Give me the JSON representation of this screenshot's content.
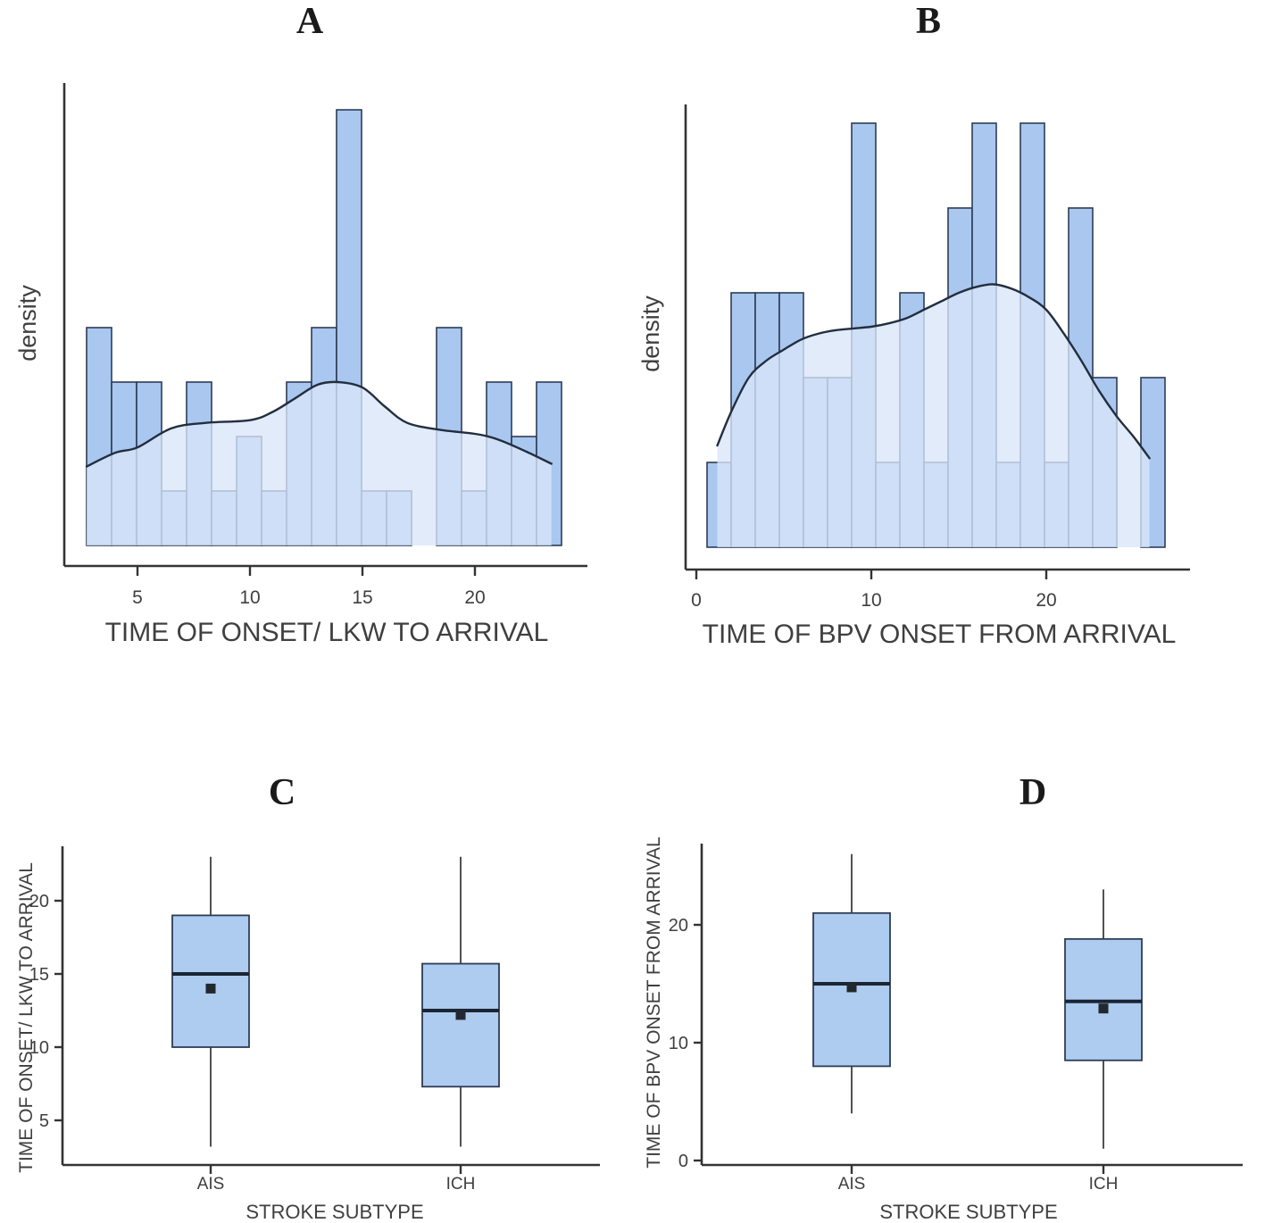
{
  "figure": {
    "background": "#ffffff",
    "colors": {
      "histogram_fill": "#a9c7ef",
      "histogram_stroke": "#2e3c55",
      "density_area_fill": "rgba(216,229,248,0.78)",
      "density_line": "#222e3e",
      "box_fill": "#aecbf0",
      "box_stroke": "#2e3c55",
      "median_line": "#1b2533",
      "mean_marker": "#23272e",
      "whisker": "#333333",
      "axis": "#333333",
      "label_text": "#3f3f3f",
      "title_text": "#1a1a1a"
    }
  },
  "chart_data": [
    {
      "panel": "A",
      "type": "histogram",
      "title": "A",
      "xlabel": "TIME OF ONSET/ LKW TO ARRIVAL",
      "ylabel": "density",
      "x_ticks": [
        5,
        10,
        15,
        20
      ],
      "x_range": [
        2.7,
        23.9
      ],
      "bin_start": 2.74,
      "bin_width": 1.111,
      "counts": [
        4,
        3,
        3,
        1,
        3,
        1,
        2,
        1,
        3,
        4,
        8,
        1,
        1,
        0,
        4,
        1,
        3,
        2,
        3
      ],
      "density_curve": [
        [
          2.74,
          1.45
        ],
        [
          4,
          1.7
        ],
        [
          5,
          1.8
        ],
        [
          6.5,
          2.15
        ],
        [
          8,
          2.25
        ],
        [
          10,
          2.3
        ],
        [
          11,
          2.45
        ],
        [
          12,
          2.7
        ],
        [
          13,
          2.95
        ],
        [
          13.9,
          3.0
        ],
        [
          15,
          2.9
        ],
        [
          16,
          2.55
        ],
        [
          17,
          2.25
        ],
        [
          18.5,
          2.12
        ],
        [
          20,
          2.05
        ],
        [
          21,
          1.95
        ],
        [
          22.3,
          1.72
        ],
        [
          23.4,
          1.5
        ]
      ]
    },
    {
      "panel": "B",
      "type": "histogram",
      "title": "B",
      "xlabel": "TIME OF BPV ONSET FROM ARRIVAL",
      "ylabel": "density",
      "x_ticks": [
        0,
        10,
        20
      ],
      "x_range": [
        0.6,
        26.9
      ],
      "bin_start": 0.61,
      "bin_width": 1.378,
      "counts": [
        1,
        3,
        3,
        3,
        2,
        2,
        5,
        1,
        3,
        1,
        4,
        5,
        1,
        5,
        1,
        4,
        2,
        0,
        2
      ],
      "density_curve": [
        [
          1.2,
          1.2
        ],
        [
          2,
          1.6
        ],
        [
          3,
          2.0
        ],
        [
          4,
          2.2
        ],
        [
          5,
          2.33
        ],
        [
          6,
          2.45
        ],
        [
          7,
          2.52
        ],
        [
          8,
          2.56
        ],
        [
          9,
          2.58
        ],
        [
          10,
          2.6
        ],
        [
          11,
          2.64
        ],
        [
          12,
          2.7
        ],
        [
          13,
          2.8
        ],
        [
          14,
          2.9
        ],
        [
          15,
          3.0
        ],
        [
          16,
          3.07
        ],
        [
          17,
          3.1
        ],
        [
          18,
          3.05
        ],
        [
          19,
          2.95
        ],
        [
          20,
          2.8
        ],
        [
          21,
          2.52
        ],
        [
          22,
          2.2
        ],
        [
          23,
          1.85
        ],
        [
          24,
          1.55
        ],
        [
          25,
          1.3
        ],
        [
          25.9,
          1.05
        ]
      ]
    },
    {
      "panel": "C",
      "type": "box",
      "title": "C",
      "xlabel": "STROKE SUBTYPE",
      "ylabel": "TIME OF ONSET/ LKW TO ARRIVAL",
      "y_ticks": [
        5,
        10,
        15,
        20
      ],
      "categories": [
        "AIS",
        "ICH"
      ],
      "stats": [
        {
          "category": "AIS",
          "min": 3.2,
          "q1": 10,
          "median": 15,
          "q3": 19,
          "max": 23,
          "mean": 14
        },
        {
          "category": "ICH",
          "min": 3.2,
          "q1": 7.3,
          "median": 12.5,
          "q3": 15.7,
          "max": 23,
          "mean": 12.2
        }
      ]
    },
    {
      "panel": "D",
      "type": "box",
      "title": "D",
      "xlabel": "STROKE SUBTYPE",
      "ylabel": "TIME OF BPV ONSET FROM ARRIVAL",
      "y_ticks": [
        0,
        10,
        20
      ],
      "categories": [
        "AIS",
        "ICH"
      ],
      "stats": [
        {
          "category": "AIS",
          "min": 4,
          "q1": 8,
          "median": 15,
          "q3": 21,
          "max": 26,
          "mean": 14.7
        },
        {
          "category": "ICH",
          "min": 1,
          "q1": 8.5,
          "median": 13.5,
          "q3": 18.8,
          "max": 23,
          "mean": 12.9
        }
      ]
    }
  ]
}
